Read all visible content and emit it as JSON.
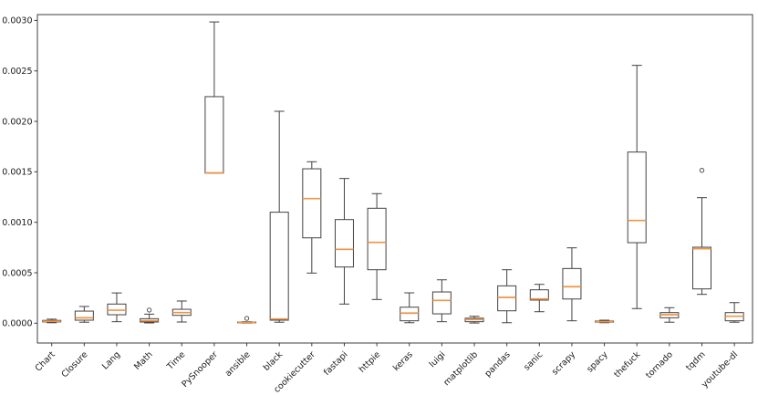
{
  "figure": {
    "title": "",
    "background": "#ffffff"
  },
  "chart_data": {
    "type": "box",
    "title": "",
    "xlabel": "",
    "ylabel": "",
    "grid": false,
    "legend": false,
    "categories": [
      "Chart",
      "Closure",
      "Lang",
      "Math",
      "Time",
      "PySnooper",
      "ansible",
      "black",
      "cookiecutter",
      "fastapi",
      "httpie",
      "keras",
      "luigi",
      "matplotlib",
      "pandas",
      "sanic",
      "scrapy",
      "spacy",
      "thefuck",
      "tornado",
      "tqdm",
      "youtube-dl"
    ],
    "ylim": [
      -0.000196,
      0.003058
    ],
    "yticks": {
      "values": [
        0.0,
        0.0005,
        0.001,
        0.0015,
        0.002,
        0.0025,
        0.003
      ],
      "labels": [
        "0.0000",
        "0.0005",
        "0.0010",
        "0.0015",
        "0.0020",
        "0.0025",
        "0.0030"
      ]
    },
    "boxes": [
      {
        "label": "Chart",
        "whislo": 5e-06,
        "q1": 1.3e-05,
        "med": 2e-05,
        "q3": 2.8e-05,
        "whishi": 4e-05,
        "fliers": []
      },
      {
        "label": "Closure",
        "whislo": 1e-05,
        "q1": 3e-05,
        "med": 5.4e-05,
        "q3": 0.00012,
        "whishi": 0.000166,
        "fliers": []
      },
      {
        "label": "Lang",
        "whislo": 1.5e-05,
        "q1": 8.4e-05,
        "med": 0.000129,
        "q3": 0.00019,
        "whishi": 0.0003,
        "fliers": []
      },
      {
        "label": "Math",
        "whislo": 3e-06,
        "q1": 1.2e-05,
        "med": 2.4e-05,
        "q3": 4.5e-05,
        "whishi": 9e-05,
        "fliers": [
          0.00013
        ]
      },
      {
        "label": "Time",
        "whislo": 1.2e-05,
        "q1": 7.8e-05,
        "med": 0.000105,
        "q3": 0.000138,
        "whishi": 0.00022,
        "fliers": []
      },
      {
        "label": "PySnooper",
        "whislo": 0.001487,
        "q1": 0.001487,
        "med": 0.00149,
        "q3": 0.002245,
        "whishi": 0.002985,
        "fliers": []
      },
      {
        "label": "ansible",
        "whislo": 2e-06,
        "q1": 4e-06,
        "med": 8e-06,
        "q3": 1.2e-05,
        "whishi": 1.5e-05,
        "fliers": [
          4.8e-05
        ]
      },
      {
        "label": "black",
        "whislo": 1e-05,
        "q1": 3e-05,
        "med": 4.2e-05,
        "q3": 0.0011,
        "whishi": 0.0021,
        "fliers": []
      },
      {
        "label": "cookiecutter",
        "whislo": 0.000497,
        "q1": 0.000846,
        "med": 0.001235,
        "q3": 0.00153,
        "whishi": 0.0016,
        "fliers": []
      },
      {
        "label": "fastapi",
        "whislo": 0.00019,
        "q1": 0.000557,
        "med": 0.000732,
        "q3": 0.001027,
        "whishi": 0.001434,
        "fliers": []
      },
      {
        "label": "httpie",
        "whislo": 0.000235,
        "q1": 0.00053,
        "med": 0.000801,
        "q3": 0.001139,
        "whishi": 0.001284,
        "fliers": []
      },
      {
        "label": "keras",
        "whislo": 5e-06,
        "q1": 2.4e-05,
        "med": 0.0001,
        "q3": 0.000159,
        "whishi": 0.000301,
        "fliers": []
      },
      {
        "label": "luigi",
        "whislo": 1.5e-05,
        "q1": 9.3e-05,
        "med": 0.000226,
        "q3": 0.00031,
        "whishi": 0.00043,
        "fliers": []
      },
      {
        "label": "matplotlib",
        "whislo": 2e-06,
        "q1": 1.5e-05,
        "med": 3.6e-05,
        "q3": 5e-05,
        "whishi": 6.9e-05,
        "fliers": []
      },
      {
        "label": "pandas",
        "whislo": 5e-06,
        "q1": 0.000123,
        "med": 0.000256,
        "q3": 0.00037,
        "whishi": 0.00053,
        "fliers": []
      },
      {
        "label": "sanic",
        "whislo": 0.000114,
        "q1": 0.000229,
        "med": 0.00024,
        "q3": 0.000331,
        "whishi": 0.000385,
        "fliers": []
      },
      {
        "label": "scrapy",
        "whislo": 2.4e-05,
        "q1": 0.00024,
        "med": 0.000362,
        "q3": 0.000542,
        "whishi": 0.000747,
        "fliers": []
      },
      {
        "label": "spacy",
        "whislo": 5e-06,
        "q1": 1e-05,
        "med": 1.5e-05,
        "q3": 2.2e-05,
        "whishi": 3e-05,
        "fliers": []
      },
      {
        "label": "thefuck",
        "whislo": 0.000145,
        "q1": 0.000798,
        "med": 0.001018,
        "q3": 0.001696,
        "whishi": 0.002555,
        "fliers": []
      },
      {
        "label": "tornado",
        "whislo": 1e-05,
        "q1": 5.4e-05,
        "med": 8.4e-05,
        "q3": 0.000105,
        "whishi": 0.000154,
        "fliers": []
      },
      {
        "label": "tqdm",
        "whislo": 0.000286,
        "q1": 0.00034,
        "med": 0.000738,
        "q3": 0.000753,
        "whishi": 0.001244,
        "fliers": [
          0.001515
        ]
      },
      {
        "label": "youtube-dl",
        "whislo": 1e-05,
        "q1": 2.4e-05,
        "med": 6.9e-05,
        "q3": 0.000105,
        "whishi": 0.000204,
        "fliers": []
      }
    ],
    "colors": {
      "background": "#ffffff",
      "box_edge": "#424242",
      "whisker": "#424242",
      "median": "#ef9545",
      "flier_edge": "#424242",
      "tick_label": "#1a1a1a",
      "spine": "#3c3c3c"
    }
  }
}
